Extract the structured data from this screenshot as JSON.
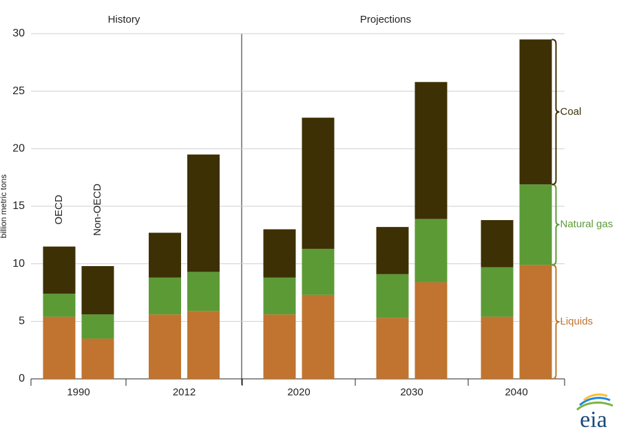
{
  "chart_data": {
    "type": "grouped_stacked_bar",
    "y_label": "billion metric tons",
    "sections": [
      "History",
      "Projections"
    ],
    "categories": [
      "1990",
      "2012",
      "2020",
      "2030",
      "2040"
    ],
    "groups": [
      "OECD",
      "Non-OECD"
    ],
    "series": [
      {
        "name": "Liquids",
        "color": "#c0742f",
        "values": [
          [
            5.4,
            3.5
          ],
          [
            5.6,
            5.9
          ],
          [
            5.6,
            7.3
          ],
          [
            5.3,
            8.4
          ],
          [
            5.4,
            9.9
          ]
        ]
      },
      {
        "name": "Natural gas",
        "color": "#5c9a36",
        "values": [
          [
            2.0,
            2.1
          ],
          [
            3.2,
            3.4
          ],
          [
            3.2,
            4.0
          ],
          [
            3.8,
            5.5
          ],
          [
            4.3,
            7.0
          ]
        ]
      },
      {
        "name": "Coal",
        "color": "#3d3005",
        "values": [
          [
            4.1,
            4.2
          ],
          [
            3.9,
            10.2
          ],
          [
            4.2,
            11.4
          ],
          [
            4.1,
            11.9
          ],
          [
            4.1,
            12.6
          ]
        ]
      }
    ],
    "ylim": [
      0,
      30
    ],
    "yticks": [
      0,
      5,
      10,
      15,
      20,
      25,
      30
    ],
    "grid": true,
    "logo": "eia"
  }
}
